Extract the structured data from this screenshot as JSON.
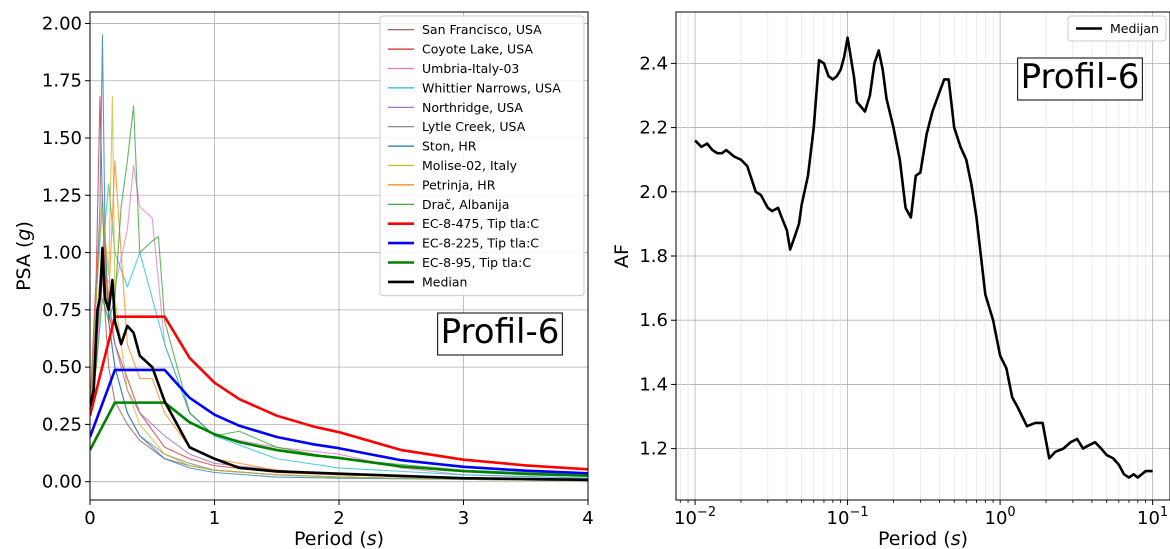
{
  "chart_data": [
    {
      "type": "line",
      "xlabel": "Period (s)",
      "ylabel": "PSA (g)",
      "xlim": [
        0,
        4
      ],
      "ylim": [
        -0.08,
        2.05
      ],
      "xticks": [
        "0",
        "1",
        "2",
        "3",
        "4"
      ],
      "yticks": [
        "0.00",
        "0.25",
        "0.50",
        "0.75",
        "1.00",
        "1.25",
        "1.50",
        "1.75",
        "2.00"
      ],
      "grid": true,
      "legend_position": "top-right",
      "annotation": "Profil-6",
      "series": [
        {
          "name": "San Francisco, USA",
          "color": "#8c564b",
          "x": [
            0,
            0.05,
            0.1,
            0.15,
            0.2,
            0.3,
            0.4,
            0.6,
            0.8,
            1.0,
            1.5,
            2.0,
            3.0,
            4.0
          ],
          "y": [
            0.3,
            0.6,
            0.9,
            0.5,
            0.35,
            0.25,
            0.18,
            0.1,
            0.07,
            0.05,
            0.03,
            0.02,
            0.01,
            0.005
          ]
        },
        {
          "name": "Coyote Lake, USA",
          "color": "#d62728",
          "x": [
            0,
            0.05,
            0.08,
            0.1,
            0.13,
            0.2,
            0.3,
            0.4,
            0.6,
            0.8,
            1.0,
            1.5,
            2.0,
            3.0,
            4.0
          ],
          "y": [
            0.32,
            0.9,
            1.68,
            1.2,
            0.8,
            0.6,
            0.45,
            0.3,
            0.15,
            0.1,
            0.07,
            0.04,
            0.03,
            0.015,
            0.008
          ]
        },
        {
          "name": "Umbria-Italy-03",
          "color": "#e377c2",
          "x": [
            0,
            0.05,
            0.1,
            0.2,
            0.3,
            0.35,
            0.4,
            0.5,
            0.6,
            0.8,
            1.0,
            1.5,
            2.0,
            2.5,
            3.0,
            4.0
          ],
          "y": [
            0.3,
            0.5,
            0.9,
            0.85,
            1.1,
            1.38,
            1.2,
            1.15,
            0.6,
            0.3,
            0.2,
            0.15,
            0.12,
            0.06,
            0.03,
            0.015
          ]
        },
        {
          "name": "Whittier Narrows, USA",
          "color": "#17becf",
          "x": [
            0,
            0.05,
            0.1,
            0.15,
            0.2,
            0.3,
            0.4,
            0.5,
            0.6,
            0.8,
            1.0,
            1.5,
            2.0,
            3.0,
            4.0
          ],
          "y": [
            0.3,
            0.6,
            1.0,
            1.3,
            1.0,
            0.85,
            1.0,
            0.8,
            0.6,
            0.3,
            0.2,
            0.1,
            0.06,
            0.03,
            0.015
          ]
        },
        {
          "name": "Northridge, USA",
          "color": "#9467bd",
          "x": [
            0,
            0.05,
            0.1,
            0.15,
            0.2,
            0.3,
            0.4,
            0.6,
            0.8,
            1.0,
            1.5,
            2.0,
            3.0,
            4.0
          ],
          "y": [
            0.3,
            0.7,
            1.0,
            0.8,
            0.6,
            0.4,
            0.3,
            0.2,
            0.12,
            0.08,
            0.05,
            0.03,
            0.015,
            0.008
          ]
        },
        {
          "name": "Lytle Creek, USA",
          "color": "#7f7f7f",
          "x": [
            0,
            0.05,
            0.1,
            0.15,
            0.2,
            0.3,
            0.4,
            0.6,
            0.8,
            1.0,
            1.5,
            2.0,
            3.0,
            4.0
          ],
          "y": [
            0.3,
            0.8,
            1.25,
            0.7,
            0.5,
            0.3,
            0.2,
            0.12,
            0.08,
            0.05,
            0.03,
            0.02,
            0.01,
            0.005
          ]
        },
        {
          "name": "Ston, HR",
          "color": "#1f77b4",
          "x": [
            0,
            0.05,
            0.08,
            0.1,
            0.12,
            0.15,
            0.2,
            0.3,
            0.4,
            0.6,
            0.8,
            1.0,
            1.5,
            2.0,
            3.0,
            4.0
          ],
          "y": [
            0.3,
            0.8,
            1.2,
            1.95,
            1.1,
            0.7,
            0.5,
            0.3,
            0.2,
            0.1,
            0.06,
            0.04,
            0.02,
            0.015,
            0.01,
            0.005
          ]
        },
        {
          "name": "Molise-02, Italy",
          "color": "#bcbd22",
          "x": [
            0,
            0.05,
            0.1,
            0.15,
            0.18,
            0.2,
            0.3,
            0.4,
            0.6,
            0.8,
            1.0,
            1.5,
            2.0,
            3.0,
            4.0
          ],
          "y": [
            0.3,
            0.8,
            1.2,
            0.9,
            1.68,
            0.8,
            0.4,
            0.25,
            0.12,
            0.07,
            0.05,
            0.03,
            0.02,
            0.01,
            0.005
          ]
        },
        {
          "name": "Petrinja, HR",
          "color": "#ff7f0e",
          "x": [
            0,
            0.05,
            0.1,
            0.15,
            0.2,
            0.3,
            0.4,
            0.5,
            0.6,
            0.8,
            1.0,
            1.5,
            2.0,
            3.0,
            4.0
          ],
          "y": [
            0.3,
            0.7,
            1.0,
            0.8,
            1.4,
            0.6,
            0.45,
            0.45,
            0.3,
            0.15,
            0.1,
            0.05,
            0.03,
            0.015,
            0.008
          ]
        },
        {
          "name": "Drač, Albanija",
          "color": "#2ca02c",
          "x": [
            0,
            0.05,
            0.1,
            0.15,
            0.2,
            0.25,
            0.3,
            0.35,
            0.4,
            0.5,
            0.55,
            0.6,
            0.8,
            1.0,
            1.2,
            1.5,
            2.0,
            3.0,
            4.0
          ],
          "y": [
            0.3,
            0.5,
            0.8,
            0.7,
            0.8,
            1.2,
            1.4,
            1.64,
            1.0,
            1.05,
            1.07,
            0.7,
            0.3,
            0.2,
            0.22,
            0.15,
            0.1,
            0.05,
            0.03
          ]
        },
        {
          "name": "EC-8-475, Tip tla:C",
          "color": "#ff0000",
          "x": [
            0,
            0.2,
            0.6,
            0.8,
            1.0,
            1.2,
            1.5,
            1.8,
            2.0,
            2.5,
            3.0,
            3.5,
            4.0
          ],
          "y": [
            0.288,
            0.72,
            0.72,
            0.54,
            0.432,
            0.36,
            0.288,
            0.24,
            0.216,
            0.138,
            0.096,
            0.071,
            0.054
          ]
        },
        {
          "name": "EC-8-225, Tip tla:C",
          "color": "#0000ff",
          "x": [
            0,
            0.2,
            0.6,
            0.8,
            1.0,
            1.2,
            1.5,
            1.8,
            2.0,
            2.5,
            3.0,
            3.5,
            4.0
          ],
          "y": [
            0.195,
            0.4875,
            0.4875,
            0.366,
            0.2925,
            0.244,
            0.195,
            0.1625,
            0.146,
            0.0936,
            0.065,
            0.0478,
            0.0366
          ]
        },
        {
          "name": "EC-8-95, Tip tla:C",
          "color": "#008000",
          "x": [
            0,
            0.2,
            0.6,
            0.8,
            1.0,
            1.2,
            1.5,
            1.8,
            2.0,
            2.5,
            3.0,
            3.5,
            4.0
          ],
          "y": [
            0.138,
            0.345,
            0.345,
            0.259,
            0.207,
            0.1725,
            0.138,
            0.115,
            0.1035,
            0.0662,
            0.046,
            0.0338,
            0.0259
          ]
        },
        {
          "name": "Median",
          "color": "#000000",
          "x": [
            0,
            0.03,
            0.06,
            0.08,
            0.1,
            0.12,
            0.15,
            0.18,
            0.2,
            0.25,
            0.3,
            0.35,
            0.4,
            0.5,
            0.6,
            0.7,
            0.8,
            1.0,
            1.2,
            1.5,
            2.0,
            2.5,
            3.0,
            4.0
          ],
          "y": [
            0.33,
            0.4,
            0.75,
            0.8,
            1.02,
            0.8,
            0.75,
            0.88,
            0.7,
            0.6,
            0.68,
            0.65,
            0.55,
            0.5,
            0.35,
            0.25,
            0.15,
            0.1,
            0.06,
            0.045,
            0.035,
            0.025,
            0.015,
            0.008
          ]
        }
      ]
    },
    {
      "type": "line",
      "xlabel": "Period (s)",
      "ylabel": "AF",
      "xscale": "log",
      "xlim": [
        0.0075,
        13
      ],
      "ylim": [
        1.04,
        2.56
      ],
      "xticks": [
        "10^-2",
        "10^-1",
        "10^0",
        "10^1"
      ],
      "yticks": [
        "1.2",
        "1.4",
        "1.6",
        "1.8",
        "2.0",
        "2.2",
        "2.4"
      ],
      "grid": true,
      "legend_position": "top-right",
      "annotation": "Profil-6",
      "series": [
        {
          "name": "Medijan",
          "color": "#000000",
          "x": [
            0.01,
            0.011,
            0.012,
            0.013,
            0.014,
            0.015,
            0.016,
            0.017,
            0.018,
            0.02,
            0.022,
            0.025,
            0.027,
            0.03,
            0.032,
            0.035,
            0.037,
            0.04,
            0.042,
            0.045,
            0.048,
            0.05,
            0.055,
            0.06,
            0.065,
            0.07,
            0.075,
            0.08,
            0.085,
            0.09,
            0.095,
            0.1,
            0.11,
            0.115,
            0.12,
            0.13,
            0.14,
            0.15,
            0.16,
            0.17,
            0.18,
            0.2,
            0.22,
            0.24,
            0.26,
            0.28,
            0.3,
            0.33,
            0.36,
            0.4,
            0.43,
            0.46,
            0.5,
            0.55,
            0.6,
            0.65,
            0.7,
            0.8,
            0.9,
            1.0,
            1.1,
            1.2,
            1.3,
            1.5,
            1.7,
            1.9,
            2.1,
            2.3,
            2.6,
            2.9,
            3.2,
            3.5,
            3.8,
            4.2,
            4.6,
            5.0,
            5.5,
            6.0,
            6.5,
            7.0,
            7.5,
            8.0,
            9.0,
            10.0
          ],
          "y": [
            2.16,
            2.14,
            2.15,
            2.13,
            2.12,
            2.12,
            2.13,
            2.12,
            2.11,
            2.1,
            2.08,
            2.0,
            1.99,
            1.95,
            1.94,
            1.95,
            1.92,
            1.88,
            1.82,
            1.86,
            1.9,
            1.96,
            2.05,
            2.2,
            2.41,
            2.4,
            2.36,
            2.35,
            2.36,
            2.38,
            2.42,
            2.48,
            2.36,
            2.28,
            2.27,
            2.25,
            2.3,
            2.4,
            2.44,
            2.38,
            2.29,
            2.2,
            2.1,
            1.95,
            1.92,
            2.05,
            2.06,
            2.18,
            2.25,
            2.31,
            2.35,
            2.35,
            2.2,
            2.14,
            2.1,
            2.02,
            1.92,
            1.68,
            1.6,
            1.49,
            1.45,
            1.36,
            1.33,
            1.27,
            1.28,
            1.28,
            1.17,
            1.19,
            1.2,
            1.22,
            1.23,
            1.2,
            1.21,
            1.22,
            1.2,
            1.18,
            1.17,
            1.15,
            1.12,
            1.11,
            1.12,
            1.11,
            1.13,
            1.13
          ]
        }
      ]
    }
  ]
}
